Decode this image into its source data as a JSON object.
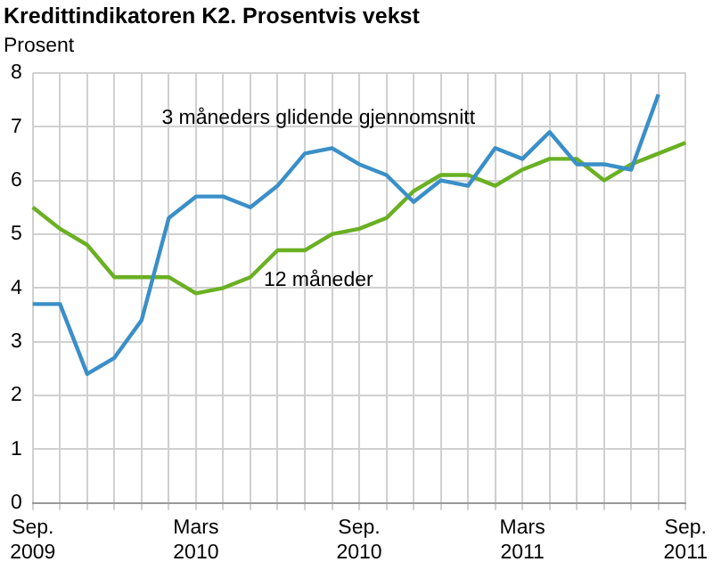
{
  "chart_data": {
    "type": "line",
    "title": "Kredittindikatoren K2. Prosentvis vekst",
    "ylabel": "Prosent",
    "categories": [
      "Sep. 2009",
      null,
      null,
      null,
      null,
      null,
      "Mars 2010",
      null,
      null,
      null,
      null,
      null,
      "Sep. 2010",
      null,
      null,
      null,
      null,
      null,
      "Mars 2011",
      null,
      null,
      null,
      null,
      null,
      "Sep. 2011"
    ],
    "series": [
      {
        "name": "3 måneders glidende gjennomsnitt",
        "color": "#3a8fc8",
        "values": [
          3.7,
          3.7,
          2.4,
          2.7,
          3.4,
          5.3,
          5.7,
          5.7,
          5.5,
          5.9,
          6.5,
          6.6,
          6.3,
          6.1,
          5.6,
          6.0,
          5.9,
          6.6,
          6.4,
          6.9,
          6.3,
          6.3,
          6.2,
          7.6,
          null
        ]
      },
      {
        "name": "12 måneder",
        "color": "#6ab023",
        "values": [
          5.5,
          5.1,
          4.8,
          4.2,
          4.2,
          4.2,
          3.9,
          4.0,
          4.2,
          4.7,
          4.7,
          5.0,
          5.1,
          5.3,
          5.8,
          6.1,
          6.1,
          5.9,
          6.2,
          6.4,
          6.4,
          6.0,
          6.3,
          6.5,
          6.7
        ]
      }
    ],
    "ylim": [
      0,
      8
    ],
    "yticks": [
      0,
      1,
      2,
      3,
      4,
      5,
      6,
      7,
      8
    ],
    "grid": true,
    "legend": false,
    "marker": "none",
    "line_style": "solid"
  }
}
